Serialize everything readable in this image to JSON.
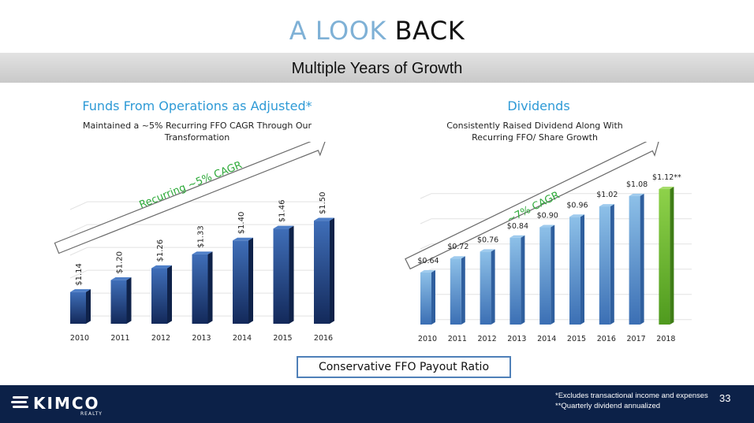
{
  "title": {
    "part1": "A LOOK",
    "part2": "BACK"
  },
  "banner": "Multiple Years of Growth",
  "colors": {
    "accent": "#2e9ad6",
    "navy": "#0c2148",
    "green": "#86c743"
  },
  "ffo": {
    "heading": "Funds From Operations as Adjusted*",
    "subtitle_line1": "Maintained a ~5% Recurring FFO CAGR Through Our",
    "subtitle_line2": "Transformation",
    "arrow_label": "Recurring ~5% CAGR"
  },
  "dividends": {
    "heading": "Dividends",
    "subtitle_line1": "Consistently Raised Dividend Along With",
    "subtitle_line2": "Recurring FFO/ Share Growth",
    "arrow_label": "~7% CAGR"
  },
  "payout_box": "Conservative FFO Payout Ratio",
  "footer": {
    "logo_text": "KIMCO",
    "logo_sub": "REALTY",
    "note1": "*Excludes transactional income and expenses",
    "note2": "**Quarterly dividend annualized",
    "page_number": "33"
  },
  "chart_data": [
    {
      "type": "bar",
      "title": "Funds From Operations as Adjusted*",
      "categories": [
        "2010",
        "2011",
        "2012",
        "2013",
        "2014",
        "2015",
        "2016"
      ],
      "values": [
        1.14,
        1.2,
        1.26,
        1.33,
        1.4,
        1.46,
        1.5
      ],
      "labels": [
        "$1.14",
        "$1.20",
        "$1.26",
        "$1.33",
        "$1.40",
        "$1.46",
        "$1.50"
      ],
      "label_orientation": "vertical",
      "ylim": [
        0.98,
        1.58
      ],
      "grid": true
    },
    {
      "type": "bar",
      "title": "Dividends",
      "categories": [
        "2010",
        "2011",
        "2012",
        "2013",
        "2014",
        "2015",
        "2016",
        "2017",
        "2018"
      ],
      "values": [
        0.64,
        0.72,
        0.76,
        0.84,
        0.9,
        0.96,
        1.02,
        1.08,
        1.12
      ],
      "labels": [
        "$0.64",
        "$0.72",
        "$0.76",
        "$0.84",
        "$0.90",
        "$0.96",
        "$1.02",
        "$1.08",
        "$1.12**"
      ],
      "highlight_last": true,
      "ylim": [
        0.34,
        1.17
      ],
      "grid": true
    }
  ]
}
